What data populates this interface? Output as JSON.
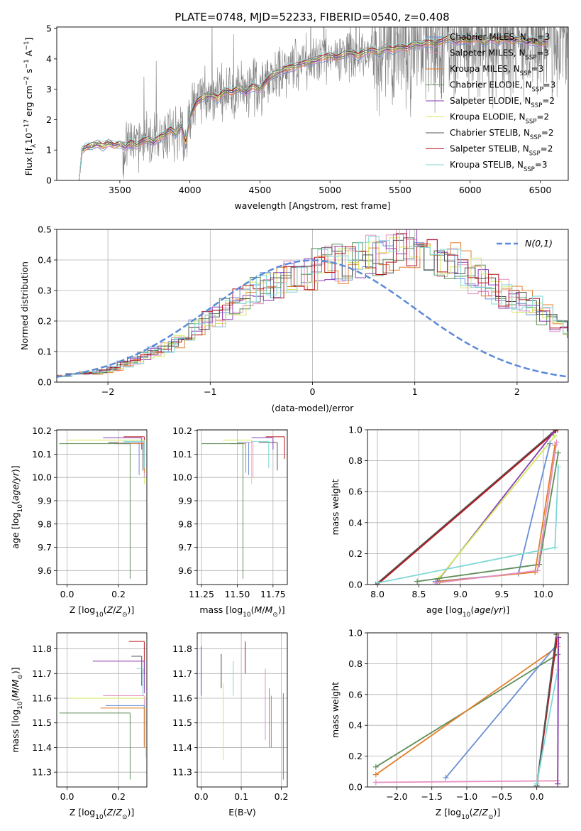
{
  "figure_title": "PLATE=0748, MJD=52233, FIBERID=0540, z=0.408",
  "colors": {
    "Chabrier MILES": "#6a8fd4",
    "Salpeter MILES": "#e58fc1",
    "Kroupa MILES": "#e37e2b",
    "Chabrier ELODIE": "#5f8f5a",
    "Salpeter ELODIE": "#8b3db5",
    "Kroupa ELODIE": "#d2e85a",
    "Chabrier STELIB": "#555555",
    "Salpeter STELIB": "#b8141a",
    "Kroupa STELIB": "#7fd8d6",
    "data": "#808080",
    "normal": "#5b8ad8"
  },
  "chart_data": [
    {
      "id": "spectrum",
      "type": "line",
      "title": "PLATE=0748, MJD=52233, FIBERID=0540, z=0.408",
      "xlabel": "wavelength [Angstrom, rest frame]",
      "ylabel": "Flux [f_λ 10^-17 erg cm^-2 s^-1 A^-1]",
      "xlim": [
        3050,
        6700
      ],
      "ylim": [
        0,
        5.05
      ],
      "xticks": [
        3500,
        4000,
        4500,
        5000,
        5500,
        6000,
        6500
      ],
      "yticks": [
        0,
        1,
        2,
        3,
        4,
        5
      ],
      "legend": "upper right",
      "grid": false,
      "series": [
        {
          "name": "Chabrier MILES",
          "sub": "SSP",
          "n": "3"
        },
        {
          "name": "Salpeter MILES",
          "sub": "SSP",
          "n": "3"
        },
        {
          "name": "Kroupa MILES",
          "sub": "SSP",
          "n": "3"
        },
        {
          "name": "Chabrier ELODIE",
          "sub": "SSP",
          "n": "3"
        },
        {
          "name": "Salpeter ELODIE",
          "sub": "SSP",
          "n": "2"
        },
        {
          "name": "Kroupa ELODIE",
          "sub": "SSP",
          "n": "2"
        },
        {
          "name": "Chabrier STELIB",
          "sub": "SSP",
          "n": "2"
        },
        {
          "name": "Salpeter STELIB",
          "sub": "SSP",
          "n": "2"
        },
        {
          "name": "Kroupa STELIB",
          "sub": "SSP",
          "n": "3"
        }
      ],
      "model_x": [
        3210,
        3230,
        3260,
        3300,
        3340,
        3380,
        3420,
        3460,
        3500,
        3540,
        3580,
        3620,
        3660,
        3700,
        3740,
        3780,
        3820,
        3860,
        3900,
        3940,
        3970,
        4000,
        4050,
        4100,
        4150,
        4200,
        4250,
        4300,
        4350,
        4400,
        4450,
        4500,
        4550,
        4600,
        4650,
        4700,
        4750,
        4800,
        4850,
        4900,
        4950,
        5000,
        5050,
        5100,
        5150,
        5200,
        5250,
        5300,
        5350,
        5400,
        5450,
        5500,
        5550,
        5600,
        5650,
        5700,
        5750,
        5800,
        5850,
        5900,
        5950,
        6000,
        6050,
        6100,
        6150,
        6200,
        6250,
        6300,
        6350,
        6400,
        6450,
        6500,
        6550
      ],
      "model_y": [
        0,
        1.0,
        1.1,
        1.15,
        1.2,
        1.12,
        1.25,
        1.15,
        1.2,
        1.1,
        1.25,
        1.15,
        1.3,
        1.35,
        1.25,
        1.4,
        1.5,
        1.7,
        1.55,
        1.8,
        1.2,
        2.1,
        2.6,
        2.75,
        2.8,
        2.7,
        2.95,
        2.9,
        3.05,
        2.9,
        3.1,
        3.0,
        3.3,
        3.5,
        3.6,
        3.7,
        3.75,
        3.85,
        3.9,
        3.95,
        4.05,
        4.1,
        4.05,
        4.15,
        4.2,
        4.1,
        4.25,
        4.3,
        4.2,
        4.35,
        4.3,
        4.4,
        4.35,
        4.5,
        4.45,
        4.55,
        4.5,
        4.6,
        4.7,
        4.55,
        4.65,
        4.6,
        4.7,
        4.55,
        4.65,
        4.6,
        4.7,
        4.6,
        4.65,
        4.55,
        4.6,
        4.5,
        4.6
      ]
    },
    {
      "id": "residual",
      "type": "histogram",
      "xlabel": "(data-model)/error",
      "ylabel": "Normed distribution",
      "xlim": [
        -2.5,
        2.5
      ],
      "ylim": [
        0,
        0.5
      ],
      "xticks": [
        -2,
        -1,
        0,
        1,
        2
      ],
      "yticks": [
        0.0,
        0.1,
        0.2,
        0.3,
        0.4,
        0.5
      ],
      "grid": true,
      "legend": "upper right",
      "normal_label": "N(0,1)",
      "bin_width": 0.1,
      "base": [
        0.015,
        0.02,
        0.02,
        0.025,
        0.03,
        0.03,
        0.035,
        0.045,
        0.06,
        0.07,
        0.085,
        0.1,
        0.115,
        0.135,
        0.155,
        0.175,
        0.2,
        0.215,
        0.24,
        0.26,
        0.28,
        0.3,
        0.315,
        0.33,
        0.345,
        0.355,
        0.365,
        0.375,
        0.38,
        0.39,
        0.4,
        0.41,
        0.415,
        0.42,
        0.43,
        0.435,
        0.44,
        0.435,
        0.425,
        0.41,
        0.39,
        0.37,
        0.35,
        0.33,
        0.31,
        0.29,
        0.275,
        0.26,
        0.24,
        0.22,
        0.2,
        0.18,
        0.165,
        0.15,
        0.13,
        0.115,
        0.1,
        0.09,
        0.08,
        0.07,
        0.06,
        0.055,
        0.05,
        0.045,
        0.04,
        0.035,
        0.03,
        0.03,
        0.025,
        0.025,
        0.02,
        0.02,
        0.02,
        0.015,
        0.015,
        0.01,
        0.01,
        0.01,
        0.01,
        0.01
      ]
    },
    {
      "id": "age-Z",
      "type": "scatter",
      "xlabel": "Z [log10(Z/Z_sun)]",
      "ylabel": "age [log10(age/yr)]",
      "xlim": [
        -0.04,
        0.31
      ],
      "ylim": [
        9.54,
        10.205
      ],
      "xticks": [
        0.0,
        0.2
      ],
      "yticks": [
        9.6,
        9.7,
        9.8,
        9.9,
        10.0,
        10.1,
        10.2
      ],
      "grid": true,
      "crosses": [
        {
          "series": "Salpeter STELIB",
          "x": 0.3,
          "y": 10.175,
          "xl": 0.22,
          "yl": 10.08
        },
        {
          "series": "Salpeter ELODIE",
          "x": 0.29,
          "y": 10.17,
          "xl": 0.14,
          "yl": 10.12
        },
        {
          "series": "Kroupa ELODIE",
          "x": 0.3,
          "y": 10.16,
          "xl": 0.0,
          "yl": 9.97
        },
        {
          "series": "Chabrier STELIB",
          "x": 0.295,
          "y": 10.15,
          "xl": 0.16,
          "yl": 10.03
        },
        {
          "series": "Salpeter MILES",
          "x": 0.3,
          "y": 10.15,
          "xl": 0.2,
          "yl": 10.0
        },
        {
          "series": "Kroupa MILES",
          "x": 0.3,
          "y": 10.145,
          "xl": 0.18,
          "yl": 10.02
        },
        {
          "series": "Kroupa STELIB",
          "x": 0.3,
          "y": 10.155,
          "xl": 0.22,
          "yl": 10.04
        },
        {
          "series": "Chabrier MILES",
          "x": 0.28,
          "y": 10.15,
          "xl": 0.22,
          "yl": 10.01
        },
        {
          "series": "Chabrier ELODIE",
          "x": 0.245,
          "y": 10.145,
          "xl": -0.03,
          "yl": 9.565
        }
      ]
    },
    {
      "id": "age-mass",
      "type": "scatter",
      "xlabel": "mass [log10(M/M_sun)]",
      "ylabel": "",
      "xlim": [
        11.22,
        11.85
      ],
      "ylim": [
        9.54,
        10.205
      ],
      "xticks": [
        11.25,
        11.5,
        11.75
      ],
      "yticks": [
        9.6,
        9.7,
        9.8,
        9.9,
        10.0,
        10.1,
        10.2
      ],
      "grid": true,
      "crosses": [
        {
          "series": "Salpeter STELIB",
          "x": 11.83,
          "y": 10.175,
          "xl": 11.7,
          "yl": 10.08
        },
        {
          "series": "Salpeter ELODIE",
          "x": 11.75,
          "y": 10.17,
          "xl": 11.6,
          "yl": 10.12
        },
        {
          "series": "Kroupa ELODIE",
          "x": 11.6,
          "y": 10.16,
          "xl": 11.4,
          "yl": 9.97
        },
        {
          "series": "Chabrier STELIB",
          "x": 11.78,
          "y": 10.15,
          "xl": 11.65,
          "yl": 10.03
        },
        {
          "series": "Salpeter MILES",
          "x": 11.61,
          "y": 10.15,
          "xl": 11.5,
          "yl": 10.0
        },
        {
          "series": "Kroupa MILES",
          "x": 11.56,
          "y": 10.145,
          "xl": 11.45,
          "yl": 10.02
        },
        {
          "series": "Kroupa STELIB",
          "x": 11.72,
          "y": 10.155,
          "xl": 11.6,
          "yl": 10.04
        },
        {
          "series": "Chabrier MILES",
          "x": 11.58,
          "y": 10.15,
          "xl": 11.5,
          "yl": 10.01
        },
        {
          "series": "Chabrier ELODIE",
          "x": 11.54,
          "y": 10.145,
          "xl": 11.25,
          "yl": 9.565
        }
      ]
    },
    {
      "id": "mw-age",
      "type": "line",
      "xlabel": "age [log10(age/yr)]",
      "ylabel": "mass weight",
      "xlim": [
        7.88,
        10.3
      ],
      "ylim": [
        0,
        1.0
      ],
      "xticks": [
        8.0,
        8.5,
        9.0,
        9.5,
        10.0
      ],
      "yticks": [
        0.0,
        0.2,
        0.4,
        0.6,
        0.8,
        1.0
      ],
      "grid": true,
      "series": [
        {
          "name": "Chabrier STELIB",
          "x": [
            7.98,
            10.15
          ],
          "y": [
            0.0,
            1.0
          ]
        },
        {
          "name": "Salpeter STELIB",
          "x": [
            8.0,
            10.17
          ],
          "y": [
            0.0,
            1.0
          ]
        },
        {
          "name": "Salpeter ELODIE",
          "x": [
            8.72,
            10.12
          ],
          "y": [
            0.02,
            0.98
          ]
        },
        {
          "name": "Kroupa ELODIE",
          "x": [
            8.74,
            10.14
          ],
          "y": [
            0.04,
            0.96
          ]
        },
        {
          "name": "Chabrier MILES",
          "x": [
            8.7,
            9.7,
            10.08
          ],
          "y": [
            0.02,
            0.07,
            0.91
          ]
        },
        {
          "name": "Chabrier ELODIE",
          "x": [
            8.48,
            9.95,
            10.18
          ],
          "y": [
            0.02,
            0.13,
            0.85
          ]
        },
        {
          "name": "Kroupa MILES",
          "x": [
            8.75,
            9.9,
            10.14
          ],
          "y": [
            0.02,
            0.08,
            0.9
          ]
        },
        {
          "name": "Salpeter MILES",
          "x": [
            8.7,
            9.93,
            10.16
          ],
          "y": [
            0.01,
            0.09,
            0.92
          ]
        },
        {
          "name": "Kroupa STELIB",
          "x": [
            8.0,
            10.14,
            10.18
          ],
          "y": [
            0.01,
            0.24,
            0.76
          ]
        }
      ]
    },
    {
      "id": "mass-Z",
      "type": "scatter",
      "xlabel": "Z [log10(Z/Z_sun)]",
      "ylabel": "mass [log10(M/M_sun)]",
      "xlim": [
        -0.04,
        0.31
      ],
      "ylim": [
        11.24,
        11.865
      ],
      "xticks": [
        0.0,
        0.2
      ],
      "yticks": [
        11.3,
        11.4,
        11.5,
        11.6,
        11.7,
        11.8
      ],
      "grid": true,
      "crosses": [
        {
          "series": "Salpeter STELIB",
          "x": 0.3,
          "y": 11.83,
          "xl": 0.24,
          "yl": 11.7
        },
        {
          "series": "Chabrier STELIB",
          "x": 0.29,
          "y": 11.77,
          "xl": 0.25,
          "yl": 11.65
        },
        {
          "series": "Salpeter ELODIE",
          "x": 0.3,
          "y": 11.75,
          "xl": 0.1,
          "yl": 11.62
        },
        {
          "series": "Kroupa STELIB",
          "x": 0.295,
          "y": 11.72,
          "xl": 0.27,
          "yl": 11.61
        },
        {
          "series": "Salpeter MILES",
          "x": 0.3,
          "y": 11.61,
          "xl": 0.14,
          "yl": 11.42
        },
        {
          "series": "Kroupa ELODIE",
          "x": 0.305,
          "y": 11.6,
          "xl": 0.01,
          "yl": 11.36
        },
        {
          "series": "Chabrier MILES",
          "x": 0.3,
          "y": 11.57,
          "xl": 0.15,
          "yl": 11.4
        },
        {
          "series": "Kroupa MILES",
          "x": 0.3,
          "y": 11.56,
          "xl": 0.13,
          "yl": 11.4
        },
        {
          "series": "Chabrier ELODIE",
          "x": 0.245,
          "y": 11.54,
          "xl": -0.03,
          "yl": 11.27
        }
      ]
    },
    {
      "id": "mass-EBV",
      "type": "scatter",
      "xlabel": "E(B-V)",
      "ylabel": "",
      "xlim": [
        -0.01,
        0.215
      ],
      "ylim": [
        11.24,
        11.865
      ],
      "xticks": [
        0.0,
        0.1,
        0.2
      ],
      "yticks": [
        11.3,
        11.4,
        11.5,
        11.6,
        11.7,
        11.8
      ],
      "grid": true,
      "segments": [
        {
          "series": "Salpeter ELODIE",
          "x": 0.0,
          "y0": 11.61,
          "y1": 11.81
        },
        {
          "series": "Chabrier STELIB",
          "x": 0.05,
          "y0": 11.64,
          "y1": 11.78
        },
        {
          "series": "Kroupa ELODIE",
          "x": 0.055,
          "y0": 11.35,
          "y1": 11.66
        },
        {
          "series": "Kroupa STELIB",
          "x": 0.08,
          "y0": 11.61,
          "y1": 11.75
        },
        {
          "series": "Salpeter STELIB",
          "x": 0.11,
          "y0": 11.7,
          "y1": 11.83
        },
        {
          "series": "Salpeter MILES",
          "x": 0.16,
          "y0": 11.43,
          "y1": 11.72
        },
        {
          "series": "Chabrier MILES",
          "x": 0.17,
          "y0": 11.4,
          "y1": 11.64
        },
        {
          "series": "Kroupa MILES",
          "x": 0.175,
          "y0": 11.4,
          "y1": 11.61
        },
        {
          "series": "Chabrier ELODIE",
          "x": 0.205,
          "y0": 11.27,
          "y1": 11.62
        }
      ]
    },
    {
      "id": "mw-Z",
      "type": "line",
      "xlabel": "Z [log10(Z/Z_sun)]",
      "ylabel": "mass weight",
      "xlim": [
        -2.42,
        0.45
      ],
      "ylim": [
        0,
        1.0
      ],
      "xticks": [
        -2.0,
        -1.5,
        -1.0,
        -0.5,
        0.0
      ],
      "yticks": [
        0.0,
        0.2,
        0.4,
        0.6,
        0.8,
        1.0
      ],
      "grid": true,
      "series": [
        {
          "name": "Chabrier ELODIE",
          "x": [
            -2.3,
            0.3
          ],
          "y": [
            0.13,
            0.86
          ]
        },
        {
          "name": "Kroupa MILES",
          "x": [
            -2.3,
            0.3
          ],
          "y": [
            0.08,
            0.91
          ]
        },
        {
          "name": "Chabrier MILES",
          "x": [
            -1.3,
            0.3
          ],
          "y": [
            0.06,
            0.93
          ]
        },
        {
          "name": "Salpeter MILES",
          "x": [
            -2.3,
            0.3
          ],
          "y": [
            0.03,
            0.04
          ]
        },
        {
          "name": "Salpeter STELIB",
          "x": [
            0.0,
            0.3
          ],
          "y": [
            0.0,
            1.0
          ]
        },
        {
          "name": "Chabrier STELIB",
          "x": [
            0.0,
            0.28
          ],
          "y": [
            0.01,
            0.99
          ]
        },
        {
          "name": "Kroupa STELIB",
          "x": [
            0.0,
            0.3
          ],
          "y": [
            0.02,
            0.76
          ]
        },
        {
          "name": "Kroupa ELODIE",
          "x": [
            0.3,
            0.3
          ],
          "y": [
            0.02,
            0.98
          ]
        },
        {
          "name": "Salpeter ELODIE",
          "x": [
            0.3,
            0.31
          ],
          "y": [
            0.02,
            0.97
          ]
        }
      ]
    }
  ]
}
